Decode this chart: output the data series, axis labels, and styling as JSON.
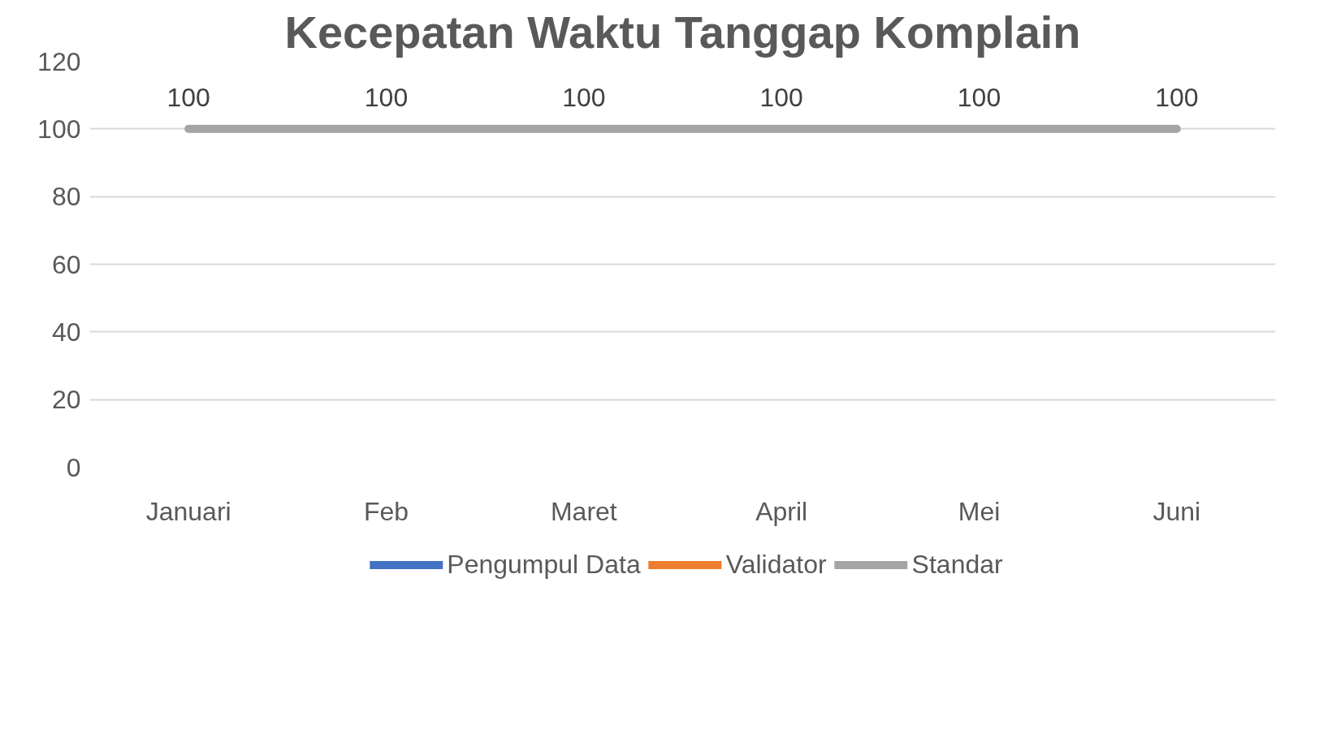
{
  "chart_data": {
    "type": "line",
    "title": "Kecepatan Waktu Tanggap Komplain",
    "categories": [
      "Januari",
      "Feb",
      "Maret",
      "April",
      "Mei",
      "Juni"
    ],
    "series": [
      {
        "name": "Pengumpul Data",
        "color": "#4472c4",
        "values": [
          null,
          null,
          null,
          null,
          null,
          null
        ]
      },
      {
        "name": "Validator",
        "color": "#ed7d31",
        "values": [
          null,
          null,
          null,
          null,
          null,
          null
        ]
      },
      {
        "name": "Standar",
        "color": "#a5a5a5",
        "values": [
          100,
          100,
          100,
          100,
          100,
          100
        ]
      }
    ],
    "ylim": [
      0,
      120
    ],
    "yticks": [
      0,
      20,
      40,
      60,
      80,
      100,
      120
    ],
    "grid": "y",
    "legend": "bottom",
    "data_labels": true,
    "marker": "none",
    "line_style": "solid"
  }
}
